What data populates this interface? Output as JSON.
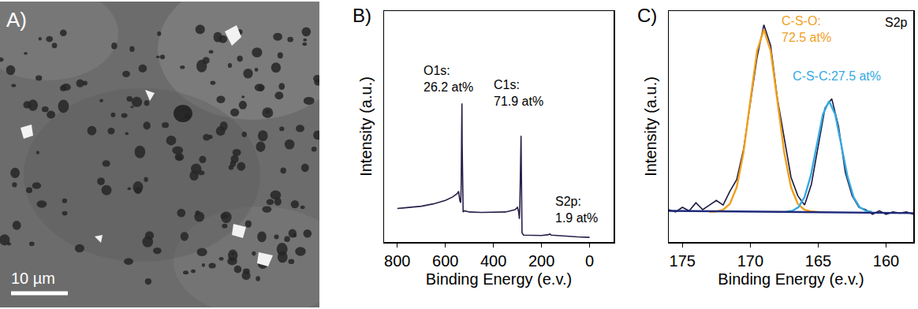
{
  "image": {
    "panel": "A)",
    "scale_bar": "10 µm"
  },
  "chart_data": [
    {
      "panel": "B)",
      "type": "line",
      "grid": false,
      "tick_labels": "x",
      "x_label": "Binding Energy (e.v.)",
      "y_label": "Intensity (a.u.)",
      "xlim": [
        855,
        -100
      ],
      "xticks": [
        800,
        600,
        400,
        200,
        0
      ],
      "ylim": [
        0,
        100
      ],
      "series": [
        {
          "color": "#2a1f4a",
          "x": [
            800,
            750,
            700,
            650,
            600,
            570,
            550,
            545,
            540,
            536,
            534,
            532,
            531,
            530,
            528,
            526,
            520,
            500,
            450,
            400,
            350,
            310,
            300,
            295,
            292,
            290,
            287,
            285,
            284,
            283,
            281,
            275,
            250,
            200,
            170,
            165,
            160,
            100,
            50,
            0
          ],
          "values": [
            14.5,
            15,
            15.5,
            16.5,
            18,
            19.5,
            21,
            22,
            18,
            17,
            25,
            50,
            60,
            42,
            15,
            13,
            13.5,
            13,
            12.8,
            13,
            13,
            14,
            15,
            13,
            10,
            16,
            35,
            46,
            34,
            10,
            4,
            3,
            3,
            2.8,
            3.2,
            3.5,
            3,
            2.5,
            2.2,
            2
          ]
        }
      ],
      "annotations": [
        {
          "lines": [
            "O1s:",
            "26.2 at%"
          ],
          "x": 696,
          "y": 70.5
        },
        {
          "lines": [
            "C1s:",
            "71.9 at%"
          ],
          "x": 406,
          "y": 64.5
        },
        {
          "lines": [
            "S2p:",
            "1.9 at%"
          ],
          "x": 150,
          "y": 14
        }
      ]
    },
    {
      "panel": "C)",
      "type": "line",
      "grid": false,
      "tick_labels": "x",
      "x_label": "Binding Energy (e.v.)",
      "y_label": "Intensity (a.u.)",
      "xlim": [
        176,
        158
      ],
      "xticks": [
        175,
        170,
        165,
        160
      ],
      "ylim": [
        0,
        100
      ],
      "series": [
        {
          "color": "#1a1a40",
          "x": [
            176,
            175.5,
            175,
            174.5,
            174,
            173.5,
            173,
            172.5,
            172,
            171.5,
            171,
            170.5,
            170,
            169.5,
            169,
            168.5,
            168,
            167.5,
            167,
            166.5,
            166,
            165.5,
            165,
            164.5,
            164,
            163.5,
            163,
            162.5,
            162,
            161.5,
            161,
            160.5,
            160,
            159.5,
            159,
            158.5,
            158
          ],
          "values": [
            14,
            13,
            15,
            13.5,
            17,
            14,
            16,
            18,
            16,
            22,
            27,
            40,
            60,
            80,
            94,
            85,
            62,
            45,
            28,
            20,
            16,
            25,
            42,
            58,
            62,
            50,
            30,
            20,
            15,
            14,
            12,
            13.5,
            12,
            13,
            12.5,
            13,
            12
          ]
        },
        {
          "color": "#f0a01e",
          "x": [
            173,
            172.5,
            172,
            171.5,
            171,
            170.5,
            170,
            169.5,
            169,
            168.5,
            168,
            167.5,
            167,
            166.5,
            166,
            165.5,
            165
          ],
          "values": [
            13,
            13.2,
            13.9,
            16.5,
            23.7,
            38.7,
            61,
            82.7,
            92,
            82.7,
            61,
            38.7,
            23.7,
            16.5,
            13.9,
            13.2,
            13
          ]
        },
        {
          "color": "#36a9e1",
          "x": [
            167.35,
            166.9,
            166.45,
            166,
            165.55,
            165.1,
            164.65,
            164.2,
            163.75,
            163.3,
            162.85,
            162.4,
            161.95,
            161.5,
            161.05
          ],
          "values": [
            13.1,
            13.5,
            15.1,
            19.5,
            28.6,
            42.1,
            55.3,
            61,
            55.3,
            42.1,
            28.6,
            19.5,
            15.1,
            13.5,
            13.1
          ]
        },
        {
          "color": "#1f2a7a",
          "x": [
            176,
            158
          ],
          "values": [
            13.5,
            12.5
          ]
        }
      ],
      "annotations": [
        {
          "lines": [
            "C-S-O:",
            "72.5 at%"
          ],
          "color": "#f0a01e",
          "x": 167.8,
          "y": 92
        },
        {
          "lines": [
            "C-S-C:27.5 at%"
          ],
          "color": "#36a9e1",
          "x": 167,
          "y": 72
        },
        {
          "lines": [
            "S2p"
          ],
          "x": 160.2,
          "y": 95
        }
      ]
    }
  ]
}
